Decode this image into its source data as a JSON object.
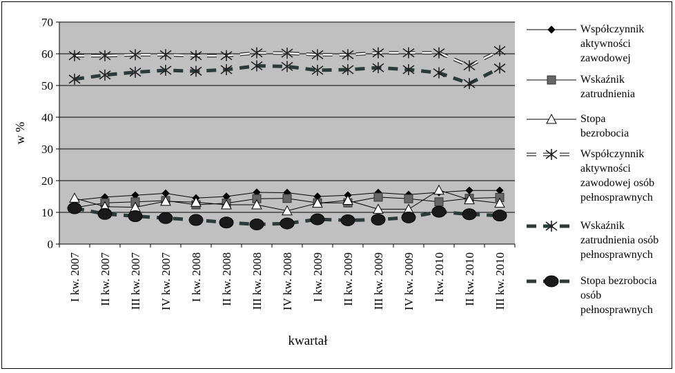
{
  "chart_data": {
    "type": "line",
    "title": "",
    "xlabel": "kwartał",
    "ylabel": "w %",
    "ylim": [
      0,
      70
    ],
    "yticks": [
      0,
      10,
      20,
      30,
      40,
      50,
      60,
      70
    ],
    "grid": true,
    "legend_position": "right",
    "plot_background": "#c0c0c0",
    "categories": [
      "I kw. 2007",
      "II kw. 2007",
      "III kw. 2007",
      "IV kw. 2007",
      "I kw. 2008",
      "II kw. 2008",
      "III kw. 2008",
      "IV kw. 2008",
      "I kw. 2009",
      "II kw. 2009",
      "III kw. 2009",
      "IV kw. 2009",
      "I kw. 2010",
      "II kw. 2010",
      "III kw. 2010"
    ],
    "series": [
      {
        "name": "Współczynnik aktywności zawodowej",
        "legend_lines": [
          "Współczynnik",
          "aktywności",
          "zawodowej"
        ],
        "marker": "diamond",
        "line": "solid-thin",
        "values": [
          13.8,
          14.8,
          15.4,
          16.0,
          14.5,
          15.0,
          16.3,
          16.2,
          15.0,
          15.4,
          16.2,
          15.6,
          16.3,
          16.9,
          16.9
        ]
      },
      {
        "name": "Wskaźnik zatrudnienia",
        "legend_lines": [
          "Wskaźnik",
          "zatrudnienia"
        ],
        "marker": "square",
        "line": "solid-thin",
        "values": [
          11.5,
          13.0,
          13.3,
          13.7,
          12.4,
          12.9,
          14.3,
          14.4,
          13.0,
          13.0,
          14.8,
          14.3,
          13.3,
          14.4,
          14.7
        ]
      },
      {
        "name": "Stopa bezrobocia",
        "legend_lines": [
          "Stopa",
          "bezrobocia"
        ],
        "marker": "triangle",
        "line": "solid-thin",
        "values": [
          14.5,
          11.8,
          11.6,
          13.5,
          13.2,
          12.4,
          12.4,
          10.5,
          12.9,
          13.8,
          11.0,
          11.0,
          17.0,
          14.0,
          12.9
        ]
      },
      {
        "name": "Współczynnik aktywności zawodowej osób pełnosprawnych",
        "legend_lines": [
          "Współczynnik",
          "aktywności",
          "zawodowej osób",
          "pełnosprawnych"
        ],
        "marker": "asterisk",
        "line": "double-dashed",
        "values": [
          59.4,
          59.4,
          59.7,
          59.7,
          59.4,
          59.4,
          60.3,
          60.2,
          59.7,
          59.7,
          60.3,
          60.3,
          60.3,
          56.2,
          61.0
        ]
      },
      {
        "name": "Wskaźnik zatrudnienia osób pełnosprawnych",
        "legend_lines": [
          "Wskaźnik",
          "zatrudnienia osób",
          "pełnosprawnych"
        ],
        "marker": "asterisk",
        "line": "thick-dashed",
        "values": [
          52.0,
          53.3,
          54.2,
          54.8,
          54.5,
          55.0,
          56.2,
          56.0,
          54.8,
          55.0,
          55.6,
          55.0,
          54.0,
          50.6,
          55.5
        ]
      },
      {
        "name": "Stopa bezrobocia osób pełnosprawnych",
        "legend_lines": [
          "Stopa bezrobocia",
          "osób",
          "pełnosprawnych"
        ],
        "marker": "circle",
        "line": "thick-dashed",
        "values": [
          11.3,
          9.5,
          8.8,
          8.2,
          7.6,
          6.8,
          6.2,
          6.5,
          7.8,
          7.5,
          7.7,
          8.4,
          10.2,
          9.4,
          9.0
        ]
      }
    ]
  }
}
